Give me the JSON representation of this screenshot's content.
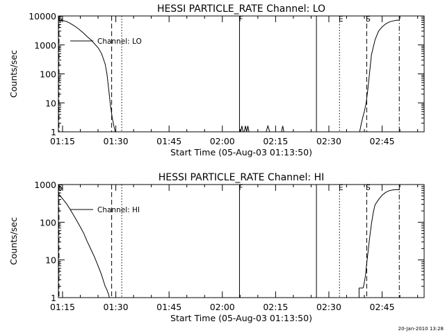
{
  "chart_data": [
    {
      "type": "line",
      "title": "HESSI PARTICLE_RATE Channel: LO",
      "xlabel": "Start Time (05-Aug-03 01:13:50)",
      "ylabel": "Counts/sec",
      "y_scale": "log",
      "ylim": [
        1,
        10000
      ],
      "y_ticks": [
        1,
        10,
        100,
        1000,
        10000
      ],
      "y_tick_labels": [
        "1",
        "10",
        "100",
        "1000",
        "10000"
      ],
      "xlim": [
        "01:13:50",
        "02:56:50"
      ],
      "x_ticks": [
        "01:15",
        "01:30",
        "01:45",
        "02:00",
        "02:15",
        "02:30",
        "02:45"
      ],
      "legend": {
        "label": "Channel: LO",
        "position": "top-left"
      },
      "series": [
        {
          "name": "Channel: LO",
          "segments": [
            {
              "x": [
                "01:13:50",
                "01:15:00",
                "01:16:00",
                "01:17:00",
                "01:18:00",
                "01:19:00",
                "01:20:00",
                "01:21:00",
                "01:22:00",
                "01:23:00",
                "01:24:00",
                "01:25:00",
                "01:26:00",
                "01:27:00",
                "01:27:30",
                "01:28:00",
                "01:28:30",
                "01:29:00",
                "01:29:30",
                "01:29:50"
              ],
              "values": [
                7400,
                7000,
                6500,
                5700,
                4800,
                4000,
                3200,
                2500,
                1900,
                1500,
                1100,
                800,
                500,
                220,
                100,
                30,
                8,
                3,
                1.5,
                1
              ]
            },
            {
              "x": [
                "02:05:10",
                "02:05:30",
                "02:05:50"
              ],
              "values": [
                1,
                1.6,
                1
              ]
            },
            {
              "x": [
                "02:06:10",
                "02:06:30",
                "02:06:50",
                "02:07:10",
                "02:07:30"
              ],
              "values": [
                1,
                1.6,
                1,
                1.6,
                1
              ]
            },
            {
              "x": [
                "02:12:20",
                "02:12:50",
                "02:13:20"
              ],
              "values": [
                1,
                1.6,
                1
              ]
            },
            {
              "x": [
                "02:16:40",
                "02:17:00",
                "02:17:20"
              ],
              "values": [
                1,
                1.6,
                1
              ]
            },
            {
              "x": [
                "02:38:40",
                "02:39:10",
                "02:39:30",
                "02:40:00",
                "02:40:30",
                "02:41:00",
                "02:41:30",
                "02:42:00",
                "02:43:00",
                "02:44:00",
                "02:45:00",
                "02:46:00",
                "02:47:00",
                "02:48:00",
                "02:49:00",
                "02:50:00"
              ],
              "values": [
                1,
                2,
                3,
                5,
                10,
                30,
                120,
                450,
                1500,
                3000,
                4200,
                5300,
                6200,
                6700,
                7100,
                7200
              ]
            }
          ]
        }
      ],
      "markers": [
        {
          "time": "01:14:00",
          "style": "dashed",
          "label": "S"
        },
        {
          "time": "01:28:50",
          "style": "dashed",
          "label": ""
        },
        {
          "time": "01:31:40",
          "style": "dotted",
          "label": ""
        },
        {
          "time": "02:04:50",
          "style": "solid",
          "label": "F"
        },
        {
          "time": "02:26:30",
          "style": "solid",
          "label": ""
        },
        {
          "time": "02:33:00",
          "style": "dotted",
          "label": "E"
        },
        {
          "time": "02:40:40",
          "style": "dashed",
          "label": "S"
        },
        {
          "time": "02:49:50",
          "style": "dashdot",
          "label": ""
        }
      ]
    },
    {
      "type": "line",
      "title": "HESSI PARTICLE_RATE Channel: HI",
      "xlabel": "Start Time (05-Aug-03 01:13:50)",
      "ylabel": "Counts/sec",
      "y_scale": "log",
      "ylim": [
        1,
        1000
      ],
      "y_ticks": [
        1,
        10,
        100,
        1000
      ],
      "y_tick_labels": [
        "1",
        "10",
        "100",
        "1000"
      ],
      "xlim": [
        "01:13:50",
        "02:56:50"
      ],
      "x_ticks": [
        "01:15",
        "01:30",
        "01:45",
        "02:00",
        "02:15",
        "02:30",
        "02:45"
      ],
      "legend": {
        "label": "Channel: HI",
        "position": "top-left"
      },
      "series": [
        {
          "name": "Channel: HI",
          "segments": [
            {
              "x": [
                "01:13:50",
                "01:15:00",
                "01:16:00",
                "01:17:00",
                "01:18:00",
                "01:19:00",
                "01:20:00",
                "01:21:00",
                "01:22:00",
                "01:23:00",
                "01:24:00",
                "01:25:00",
                "01:26:00",
                "01:27:00",
                "01:27:30",
                "01:28:00",
                "01:28:10"
              ],
              "values": [
                560,
                420,
                320,
                230,
                160,
                110,
                75,
                50,
                30,
                19,
                12,
                7,
                4,
                2,
                1.6,
                1.2,
                1
              ]
            },
            {
              "x": [
                "02:39:40",
                "02:40:00",
                "02:40:20",
                "02:40:40",
                "02:41:00",
                "02:41:30",
                "02:42:00",
                "02:42:30",
                "02:43:00",
                "02:44:00",
                "02:45:00",
                "02:46:00",
                "02:47:00",
                "02:48:00",
                "02:49:00",
                "02:50:00"
              ],
              "values": [
                1.8,
                2.5,
                4,
                8,
                15,
                40,
                90,
                180,
                290,
                400,
                520,
                620,
                690,
                720,
                730,
                730
              ]
            },
            {
              "x": [
                "02:38:30",
                "02:39:40"
              ],
              "values": [
                1.8,
                1.8
              ]
            },
            {
              "x": [
                "02:38:30",
                "02:38:30"
              ],
              "values": [
                1,
                1.8
              ]
            }
          ]
        }
      ],
      "markers": [
        {
          "time": "01:14:00",
          "style": "dashed",
          "label": "S"
        },
        {
          "time": "01:28:50",
          "style": "dashed",
          "label": ""
        },
        {
          "time": "01:31:40",
          "style": "dotted",
          "label": ""
        },
        {
          "time": "02:04:50",
          "style": "solid",
          "label": "F"
        },
        {
          "time": "02:26:30",
          "style": "solid",
          "label": ""
        },
        {
          "time": "02:33:00",
          "style": "dotted",
          "label": "E"
        },
        {
          "time": "02:40:40",
          "style": "dashed",
          "label": "S"
        },
        {
          "time": "02:49:50",
          "style": "dashdot",
          "label": ""
        }
      ]
    }
  ],
  "footer": {
    "date_stamp": "20-Jan-2010 13:28"
  }
}
